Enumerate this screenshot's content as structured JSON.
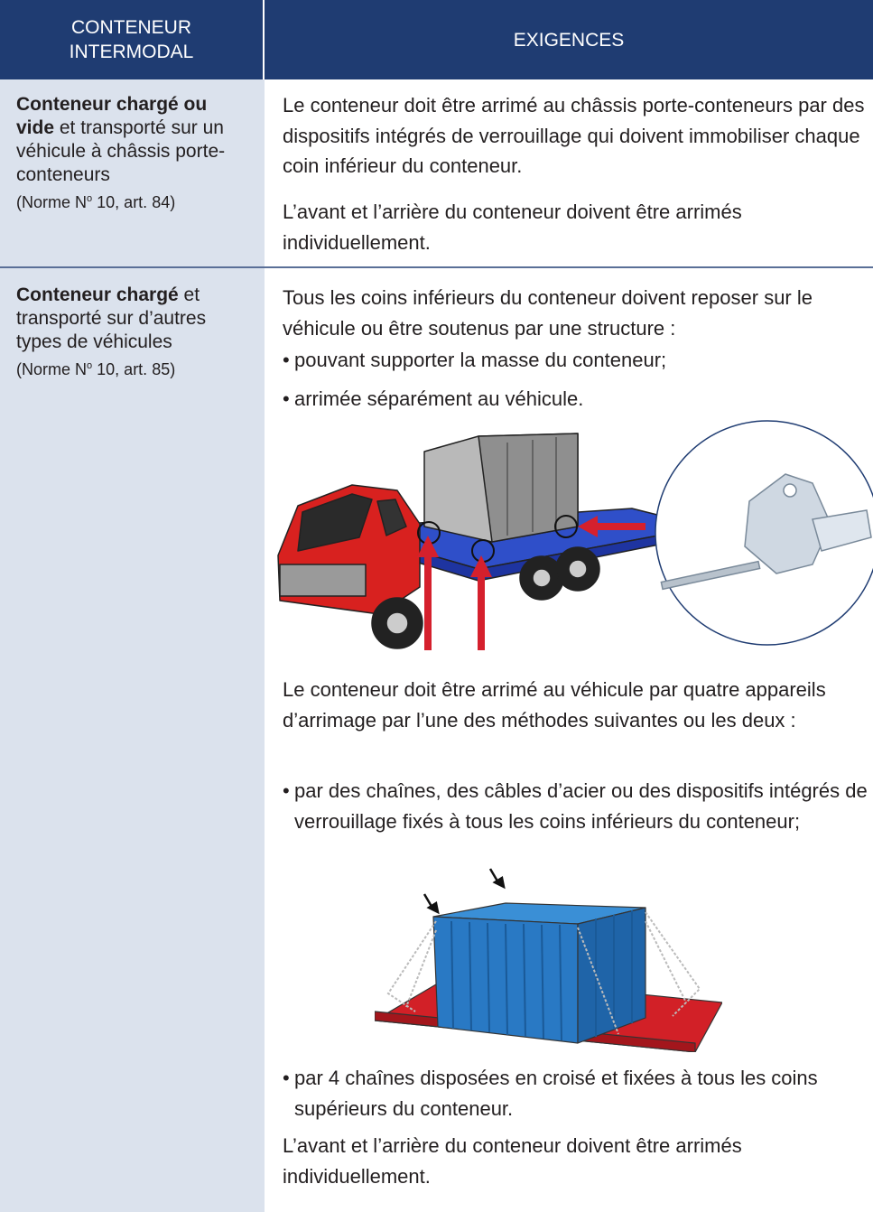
{
  "header": {
    "col1": "CONTENEUR INTERMODAL",
    "col2": "EXIGENCES"
  },
  "rows": [
    {
      "label": {
        "bold": "Conteneur chargé ou vide",
        "text": "et transporté sur un véhicule à châssis porte-conteneurs",
        "ref_before": "(Norme N",
        "ref_sup": "o",
        "ref_after": "10, art. 84)"
      },
      "requirements": {
        "p1": "Le conteneur doit être arrimé au châssis porte-conteneurs par des dispositifs intégrés de verrouillage qui doivent immobiliser chaque coin inférieur du conteneur.",
        "p2": "L’avant et l’arrière du conteneur doivent être arrimés individuellement."
      }
    },
    {
      "label": {
        "bold": "Conteneur chargé",
        "text": "et transporté sur d’autres types de véhicules",
        "ref_before": "(Norme N",
        "ref_sup": "o",
        "ref_after": "10, art. 85)"
      },
      "requirements": {
        "p1": "Tous les coins inférieurs du conteneur doivent reposer sur le véhicule ou être soutenus par une structure :",
        "b1": "pouvant supporter la masse du conteneur;",
        "b2": "arrimée séparément au véhicule.",
        "p2": "Le conteneur doit être arrimé au véhicule par quatre appareils d’arrimage par l’une des méthodes suivantes ou les deux :",
        "b3": "par des chaînes, des câbles d’acier ou des dispositifs intégrés de verrouillage fixés à tous les coins inférieurs du conteneur;",
        "b4": "par 4 chaînes disposées en croisé et fixées à tous les coins supérieurs du conteneur.",
        "p3": "L’avant et l’arrière du conteneur doivent être arrimés individuellement."
      }
    }
  ]
}
